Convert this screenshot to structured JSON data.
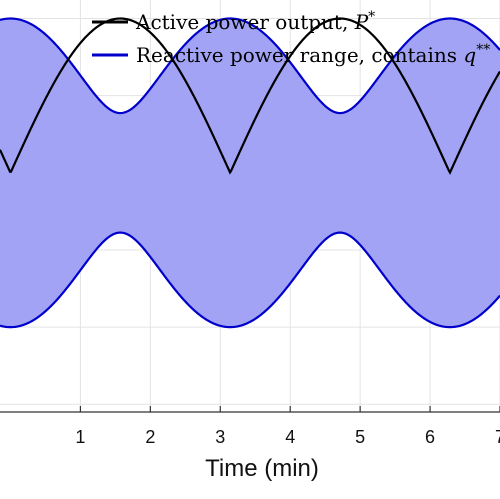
{
  "chart_data": {
    "type": "area",
    "xlabel": "Time (min)",
    "ylabel": "",
    "xlim": [
      -0.15,
      7
    ],
    "ylim": [
      -1.55,
      1.12
    ],
    "xticks": [
      1,
      2,
      3,
      4,
      5,
      6,
      7
    ],
    "xtick_labels": [
      "1",
      "2",
      "3",
      "4",
      "5",
      "6",
      "7"
    ],
    "yticks": [
      -1.5,
      -1.0,
      -0.5,
      0.0,
      0.5,
      1.0
    ],
    "grid": true,
    "legend_position": "top",
    "series": [
      {
        "name": "Active power output, P*",
        "kind": "line",
        "color": "#000000",
        "function": "abs(sin(t))",
        "t_range": [
          -0.15,
          7
        ]
      },
      {
        "name": "Reactive power range, contains q**",
        "kind": "band",
        "color": "#0000cc",
        "fill": "#a3a3f5",
        "upper_function": "sqrt(1 - 0.85*sin(t)^2)",
        "lower_function": "-sqrt(1 - 0.85*sin(t)^2)",
        "t_range": [
          -0.15,
          7
        ]
      }
    ],
    "legend": [
      {
        "label": "Active power output, ",
        "math": "P",
        "sup": "*"
      },
      {
        "label": "Reactive power range, contains ",
        "math": "q",
        "sup": "**"
      }
    ]
  }
}
